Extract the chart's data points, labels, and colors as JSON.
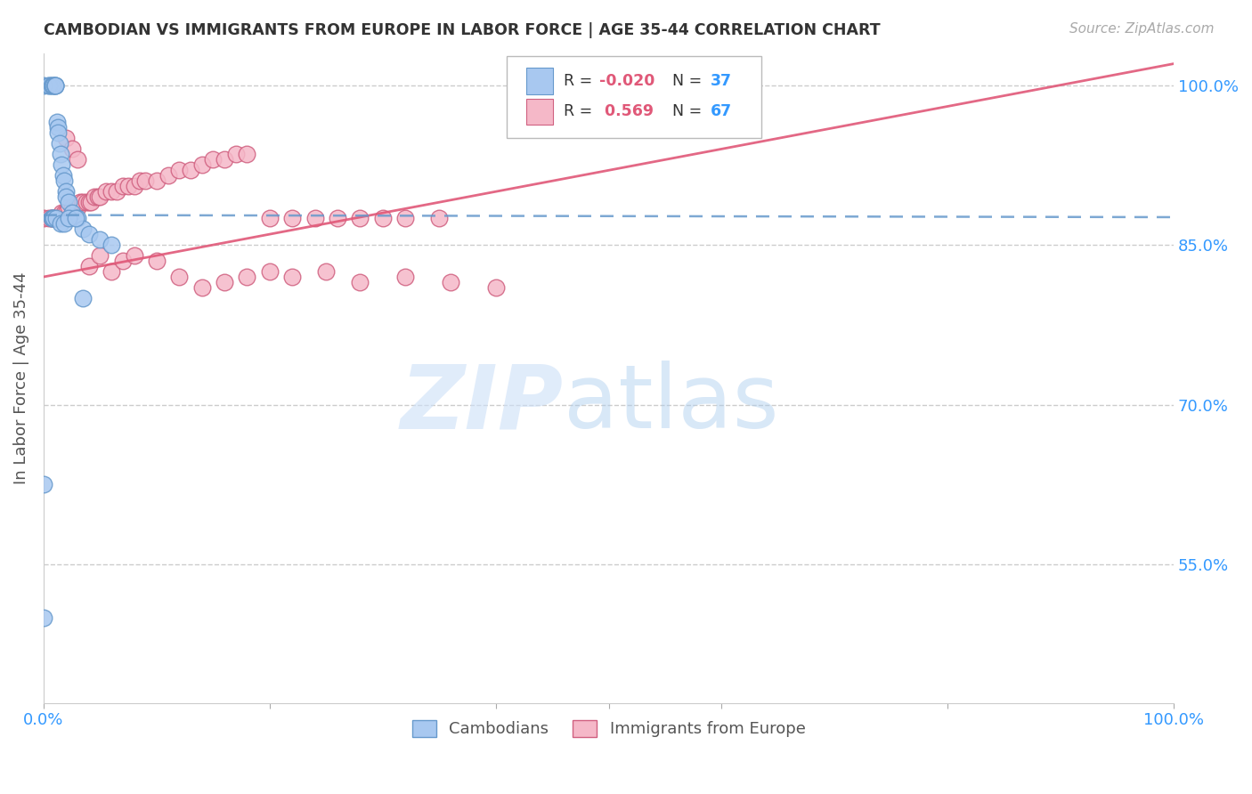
{
  "title": "CAMBODIAN VS IMMIGRANTS FROM EUROPE IN LABOR FORCE | AGE 35-44 CORRELATION CHART",
  "source": "Source: ZipAtlas.com",
  "ylabel": "In Labor Force | Age 35-44",
  "xlim": [
    0.0,
    1.0
  ],
  "ylim": [
    0.42,
    1.03
  ],
  "cambodian_color": "#a8c8f0",
  "cambodian_edge": "#6699cc",
  "europe_color": "#f5b8c8",
  "europe_edge": "#d06080",
  "cambodian_R": -0.02,
  "cambodian_N": 37,
  "europe_R": 0.569,
  "europe_N": 67,
  "cam_x": [
    0.0,
    0.005,
    0.005,
    0.007,
    0.008,
    0.009,
    0.01,
    0.01,
    0.01,
    0.012,
    0.013,
    0.013,
    0.014,
    0.015,
    0.016,
    0.017,
    0.018,
    0.02,
    0.02,
    0.022,
    0.025,
    0.03,
    0.035,
    0.04,
    0.05,
    0.06,
    0.007,
    0.008,
    0.0,
    0.0,
    0.009,
    0.011,
    0.015,
    0.018,
    0.022,
    0.028,
    0.035
  ],
  "cam_y": [
    1.0,
    1.0,
    1.0,
    1.0,
    1.0,
    1.0,
    1.0,
    1.0,
    1.0,
    0.965,
    0.96,
    0.955,
    0.945,
    0.935,
    0.925,
    0.915,
    0.91,
    0.9,
    0.895,
    0.89,
    0.88,
    0.875,
    0.865,
    0.86,
    0.855,
    0.85,
    0.875,
    0.875,
    0.625,
    0.5,
    0.875,
    0.875,
    0.87,
    0.87,
    0.875,
    0.875,
    0.8
  ],
  "eur_x": [
    0.0,
    0.005,
    0.007,
    0.008,
    0.01,
    0.012,
    0.014,
    0.016,
    0.018,
    0.02,
    0.022,
    0.025,
    0.028,
    0.03,
    0.032,
    0.035,
    0.038,
    0.04,
    0.042,
    0.045,
    0.048,
    0.05,
    0.055,
    0.06,
    0.065,
    0.07,
    0.075,
    0.08,
    0.085,
    0.09,
    0.1,
    0.11,
    0.12,
    0.13,
    0.14,
    0.15,
    0.16,
    0.17,
    0.18,
    0.2,
    0.22,
    0.24,
    0.26,
    0.28,
    0.3,
    0.32,
    0.35,
    0.02,
    0.025,
    0.03,
    0.04,
    0.05,
    0.06,
    0.07,
    0.08,
    0.1,
    0.12,
    0.14,
    0.16,
    0.18,
    0.2,
    0.22,
    0.25,
    0.28,
    0.32,
    0.36,
    0.4
  ],
  "eur_y": [
    0.875,
    0.875,
    0.875,
    0.875,
    0.875,
    0.875,
    0.875,
    0.88,
    0.88,
    0.88,
    0.885,
    0.885,
    0.885,
    0.885,
    0.89,
    0.89,
    0.89,
    0.89,
    0.89,
    0.895,
    0.895,
    0.895,
    0.9,
    0.9,
    0.9,
    0.905,
    0.905,
    0.905,
    0.91,
    0.91,
    0.91,
    0.915,
    0.92,
    0.92,
    0.925,
    0.93,
    0.93,
    0.935,
    0.935,
    0.875,
    0.875,
    0.875,
    0.875,
    0.875,
    0.875,
    0.875,
    0.875,
    0.95,
    0.94,
    0.93,
    0.83,
    0.84,
    0.825,
    0.835,
    0.84,
    0.835,
    0.82,
    0.81,
    0.815,
    0.82,
    0.825,
    0.82,
    0.825,
    0.815,
    0.82,
    0.815,
    0.81
  ],
  "ytick_vals": [
    0.55,
    0.7,
    0.85,
    1.0
  ],
  "ytick_labels": [
    "55.0%",
    "70.0%",
    "85.0%",
    "100.0%"
  ]
}
